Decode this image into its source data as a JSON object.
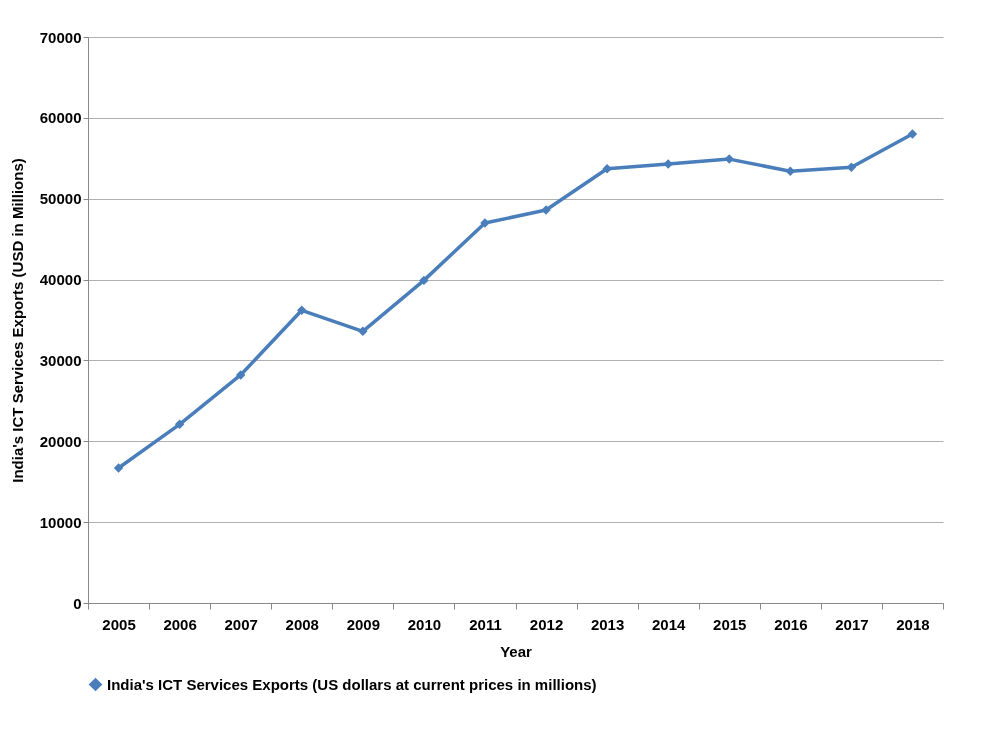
{
  "chart_data": {
    "type": "line",
    "xlabel": "Year",
    "ylabel": "India's ICT Services Exports (USD in  Millions)",
    "categories": [
      "2005",
      "2006",
      "2007",
      "2008",
      "2009",
      "2010",
      "2011",
      "2012",
      "2013",
      "2014",
      "2015",
      "2016",
      "2017",
      "2018"
    ],
    "series": [
      {
        "name": "India's ICT Services Exports (US dollars at current prices in millions)",
        "color": "#4a7ebb",
        "values": [
          16700,
          22100,
          28200,
          36200,
          33600,
          39900,
          47000,
          48600,
          53700,
          54300,
          54900,
          53400,
          53900,
          58000
        ]
      }
    ],
    "ylim": [
      0,
      70000
    ],
    "yticks": [
      0,
      10000,
      20000,
      30000,
      40000,
      50000,
      60000,
      70000
    ],
    "grid": "y",
    "legend": "bottom",
    "marker": "diamond",
    "line_style": "solid"
  }
}
